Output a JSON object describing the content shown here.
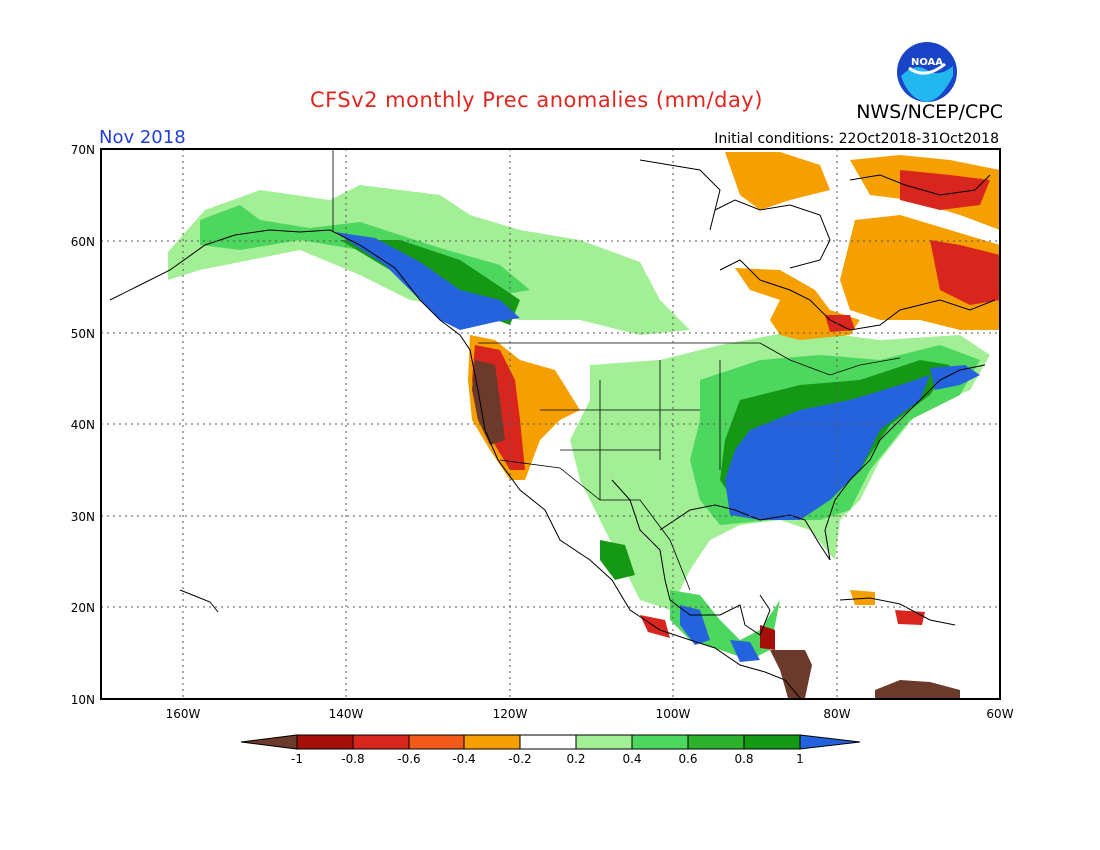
{
  "header": {
    "title": "CFSv2 monthly Prec anomalies (mm/day)",
    "month": "Nov 2018",
    "initial_conditions": "Initial conditions: 22Oct2018-31Oct2018",
    "agency": "NWS/NCEP/CPC",
    "logo_text": "NOAA"
  },
  "colors": {
    "title": "#e0261e",
    "month": "#1f3fd8",
    "bins": {
      "lt_-1": "#6b3a2a",
      "-1_-0.8": "#a50f0a",
      "-0.8_-0.6": "#d8261e",
      "-0.6_-0.4": "#f25a19",
      "-0.4_-0.2": "#f5a000",
      "-0.2_0.2": "#ffffff",
      "0.2_0.4": "#a2ef96",
      "0.4_0.6": "#4ed75e",
      "0.6_0.8": "#2bb12b",
      "0.8_1": "#159814",
      "gt_1": "#2463dd"
    }
  },
  "axes": {
    "lat_labels": [
      "70N",
      "60N",
      "50N",
      "40N",
      "30N",
      "20N",
      "10N"
    ],
    "lon_labels": [
      "160W",
      "140W",
      "120W",
      "100W",
      "80W",
      "60W"
    ],
    "lat_range": [
      10,
      70
    ],
    "lon_range": [
      -170,
      -60
    ]
  },
  "legend": {
    "labels": [
      "-1",
      "-0.8",
      "-0.6",
      "-0.4",
      "-0.2",
      "0.2",
      "0.4",
      "0.6",
      "0.8",
      "1"
    ]
  }
}
